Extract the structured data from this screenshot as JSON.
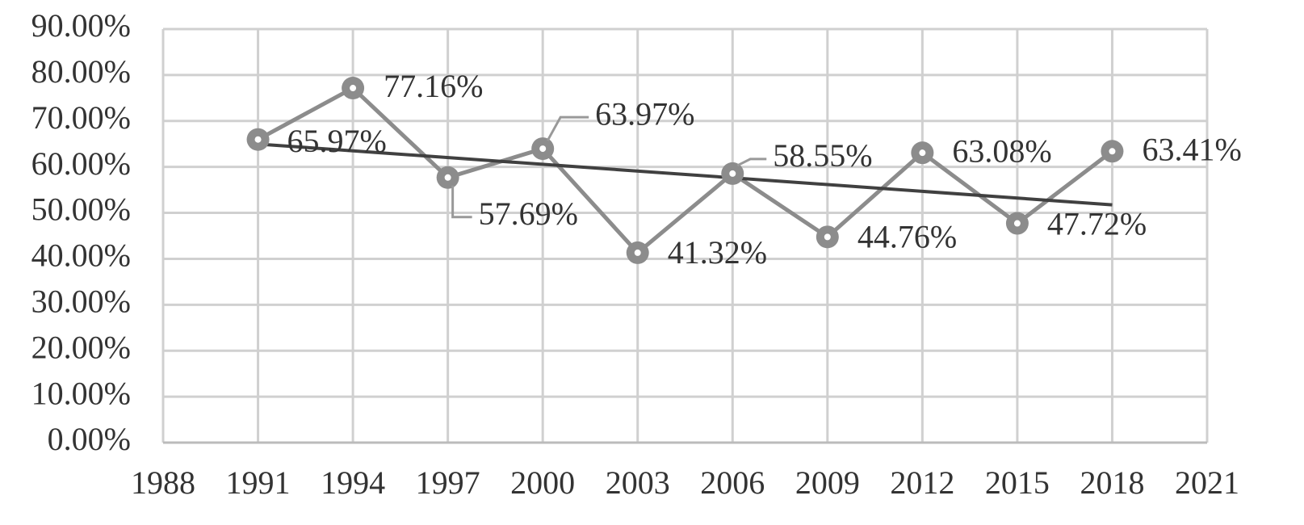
{
  "chart_data": {
    "type": "line",
    "x": [
      1991,
      1994,
      1997,
      2000,
      2003,
      2006,
      2009,
      2012,
      2015,
      2018
    ],
    "series": [
      {
        "color": "#8c8c8c",
        "values": [
          65.97,
          77.16,
          57.69,
          63.97,
          41.32,
          58.55,
          44.76,
          63.08,
          47.72,
          63.41
        ],
        "value_labels": [
          "65.97%",
          "77.16%",
          "57.69%",
          "63.97%",
          "41.32%",
          "58.55%",
          "44.76%",
          "63.08%",
          "47.72%",
          "63.41%"
        ]
      }
    ],
    "xlim": [
      1988,
      2021
    ],
    "xticks": [
      1988,
      1991,
      1994,
      1997,
      2000,
      2003,
      2006,
      2009,
      2012,
      2015,
      2018,
      2021
    ],
    "ylim": [
      0,
      90
    ],
    "yticks": [
      {
        "value": 0,
        "label": "0.00%"
      },
      {
        "value": 10,
        "label": "10.00%"
      },
      {
        "value": 20,
        "label": "20.00%"
      },
      {
        "value": 30,
        "label": "30.00%"
      },
      {
        "value": 40,
        "label": "40.00%"
      },
      {
        "value": 50,
        "label": "50.00%"
      },
      {
        "value": 60,
        "label": "60.00%"
      },
      {
        "value": 70,
        "label": "70.00%"
      },
      {
        "value": 80,
        "label": "80.00%"
      },
      {
        "value": 90,
        "label": "90.00%"
      }
    ],
    "grid": true,
    "trendline": {
      "type": "linear",
      "color": "#404040"
    }
  }
}
